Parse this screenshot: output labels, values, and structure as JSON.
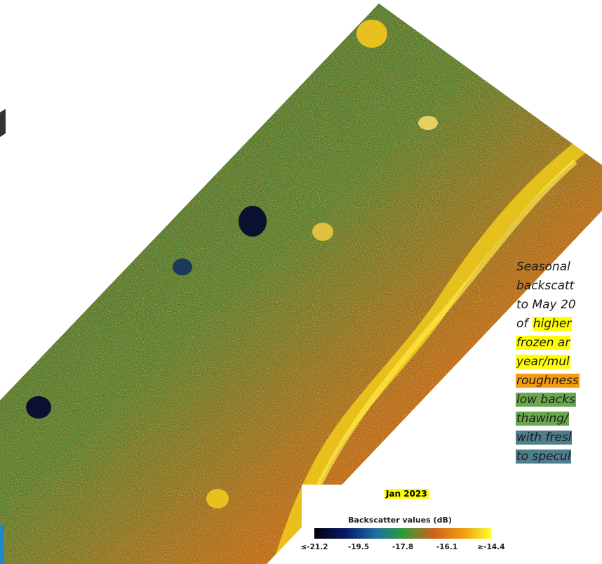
{
  "map_title": "Jan 2023",
  "legend": {
    "title": "Backscatter values (dB)",
    "ticks": [
      "≤-21.2",
      "-19.5",
      "-17.8",
      "-16.1",
      "≥-14.4"
    ]
  },
  "caption": {
    "lines": [
      {
        "segments": [
          {
            "text": "Seasonal"
          }
        ]
      },
      {
        "segments": [
          {
            "text": "backscatt"
          }
        ]
      },
      {
        "segments": [
          {
            "text": "to May 20"
          }
        ]
      },
      {
        "segments": [
          {
            "text": "of "
          },
          {
            "text": "higher",
            "color": "#ffff00"
          }
        ]
      },
      {
        "segments": [
          {
            "text": "frozen ar",
            "color": "#ffff00"
          }
        ]
      },
      {
        "segments": [
          {
            "text": "year/mul",
            "color": "#ffff00"
          }
        ]
      },
      {
        "segments": [
          {
            "text": "roughness",
            "color": "#f39c12"
          }
        ]
      },
      {
        "segments": [
          {
            "text": "low backs",
            "color": "#6aa84f"
          }
        ]
      },
      {
        "segments": [
          {
            "text": "thawing/",
            "color": "#6aa84f"
          }
        ]
      },
      {
        "segments": [
          {
            "text": "with fresl",
            "color": "#4f7f8f"
          }
        ]
      },
      {
        "segments": [
          {
            "text": "to specul",
            "color": "#4f7f8f"
          }
        ]
      }
    ]
  }
}
